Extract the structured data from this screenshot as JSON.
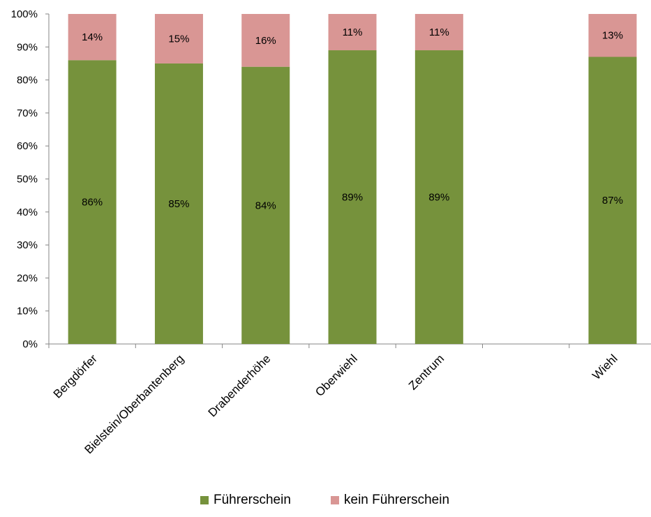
{
  "chart_data": {
    "type": "bar",
    "stacked": true,
    "categories": [
      "Bergdörfer",
      "Bielstein/Oberbantenberg",
      "Drabenderhöhe",
      "Oberwiehl",
      "Zentrum",
      "",
      "Wiehl"
    ],
    "series": [
      {
        "name": "Führerschein",
        "color": "#76923c",
        "values": [
          86,
          85,
          84,
          89,
          89,
          null,
          87
        ],
        "labels": [
          "86%",
          "85%",
          "84%",
          "89%",
          "89%",
          "",
          "87%"
        ]
      },
      {
        "name": "kein Führerschein",
        "color": "#d99694",
        "values": [
          14,
          15,
          16,
          11,
          11,
          null,
          13
        ],
        "labels": [
          "14%",
          "15%",
          "16%",
          "11%",
          "11%",
          "",
          "13%"
        ]
      }
    ],
    "y_ticks": [
      "0%",
      "10%",
      "20%",
      "30%",
      "40%",
      "50%",
      "60%",
      "70%",
      "80%",
      "90%",
      "100%"
    ],
    "ylim": [
      0,
      100
    ],
    "y_unit": "%",
    "grid": false,
    "legend_position": "bottom"
  }
}
